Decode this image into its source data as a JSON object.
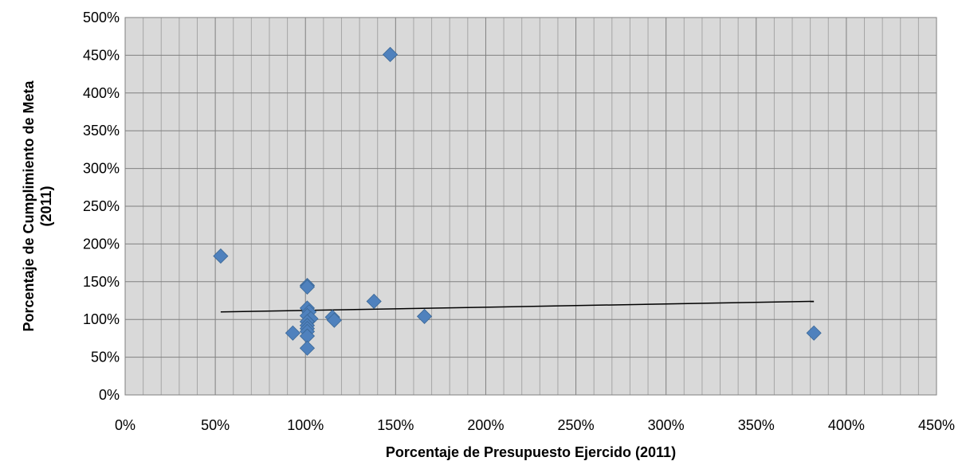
{
  "chart_data": {
    "type": "scatter",
    "xlabel": "Porcentaje de Presupuesto Ejercido (2011)",
    "ylabel_line1": "Porcentaje de Cumplimiento de Meta",
    "ylabel_line2": "(2011)",
    "xlim": [
      0,
      450
    ],
    "ylim": [
      0,
      500
    ],
    "x_ticks": [
      0,
      50,
      100,
      150,
      200,
      250,
      300,
      350,
      400,
      450
    ],
    "y_ticks": [
      0,
      50,
      100,
      150,
      200,
      250,
      300,
      350,
      400,
      450,
      500
    ],
    "tick_suffix": "%",
    "grid": true,
    "legend": "none",
    "series": [
      {
        "marker": "diamond",
        "color": "#4F81BD",
        "points": [
          {
            "x": 147,
            "y": 451
          },
          {
            "x": 53,
            "y": 184
          },
          {
            "x": 101,
            "y": 145
          },
          {
            "x": 101,
            "y": 143
          },
          {
            "x": 138,
            "y": 124
          },
          {
            "x": 101,
            "y": 115
          },
          {
            "x": 102,
            "y": 110
          },
          {
            "x": 101,
            "y": 105
          },
          {
            "x": 166,
            "y": 104
          },
          {
            "x": 115,
            "y": 103
          },
          {
            "x": 103,
            "y": 101
          },
          {
            "x": 116,
            "y": 99
          },
          {
            "x": 101,
            "y": 97
          },
          {
            "x": 101,
            "y": 92
          },
          {
            "x": 101,
            "y": 88
          },
          {
            "x": 101,
            "y": 84
          },
          {
            "x": 93,
            "y": 82
          },
          {
            "x": 382,
            "y": 82
          },
          {
            "x": 101,
            "y": 78
          },
          {
            "x": 101,
            "y": 62
          }
        ]
      }
    ],
    "trendline": {
      "x": [
        53,
        382
      ],
      "y": [
        110,
        124
      ],
      "color": "#000000"
    }
  }
}
